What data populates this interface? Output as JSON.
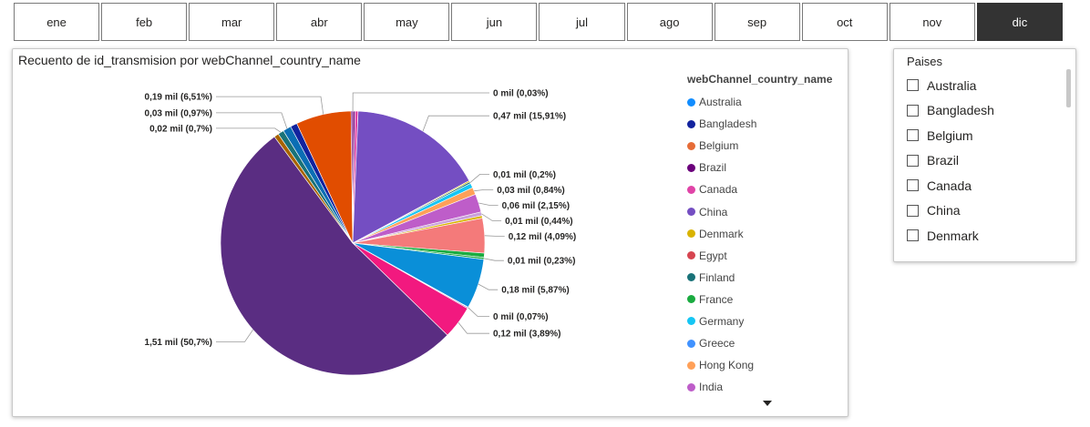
{
  "months": [
    "ene",
    "feb",
    "mar",
    "abr",
    "may",
    "jun",
    "jul",
    "ago",
    "sep",
    "oct",
    "nov",
    "dic"
  ],
  "selected_month": "dic",
  "chart_title": "Recuento de id_transmision por webChannel_country_name",
  "legend": {
    "title": "webChannel_country_name",
    "items": [
      {
        "name": "Australia",
        "color": "#118DFF"
      },
      {
        "name": "Bangladesh",
        "color": "#12239E"
      },
      {
        "name": "Belgium",
        "color": "#E66C37"
      },
      {
        "name": "Brazil",
        "color": "#6B007B"
      },
      {
        "name": "Canada",
        "color": "#E044A7"
      },
      {
        "name": "China",
        "color": "#744EC2"
      },
      {
        "name": "Denmark",
        "color": "#D9B300"
      },
      {
        "name": "Egypt",
        "color": "#D64550"
      },
      {
        "name": "Finland",
        "color": "#197278"
      },
      {
        "name": "France",
        "color": "#1AAB40"
      },
      {
        "name": "Germany",
        "color": "#15C6F4"
      },
      {
        "name": "Greece",
        "color": "#4092FF"
      },
      {
        "name": "Hong Kong",
        "color": "#FFA058"
      },
      {
        "name": "India",
        "color": "#BE5DC9"
      }
    ]
  },
  "chart_data": {
    "type": "pie",
    "title": "Recuento de id_transmision por webChannel_country_name",
    "legend_title": "webChannel_country_name",
    "legend_position": "right",
    "slices": [
      {
        "label": "0 mil (0,03%)",
        "pct": 0.03,
        "color": "#6B007B"
      },
      {
        "label": "",
        "pct": 0.25,
        "color": "#6B007B"
      },
      {
        "label": "",
        "pct": 0.35,
        "color": "#E044A7"
      },
      {
        "label": "0,47 mil (15,91%)",
        "pct": 15.91,
        "color": "#744EC2"
      },
      {
        "label": "",
        "pct": 0.15,
        "color": "#D9B300"
      },
      {
        "label": "0,01 mil (0,2%)",
        "pct": 0.2,
        "color": "#197278"
      },
      {
        "label": "",
        "pct": 0.55,
        "color": "#15C6F4"
      },
      {
        "label": "0,03 mil (0,84%)",
        "pct": 0.84,
        "color": "#FFA058"
      },
      {
        "label": "0,06 mil (2,15%)",
        "pct": 2.15,
        "color": "#BE5DC9"
      },
      {
        "label": "0,01 mil (0,44%)",
        "pct": 0.44,
        "color": "#C9A0DC"
      },
      {
        "label": "",
        "pct": 0.3,
        "color": "#D9B300"
      },
      {
        "label": "0,12 mil (4,09%)",
        "pct": 4.09,
        "color": "#F47A7A"
      },
      {
        "label": "",
        "pct": 0.5,
        "color": "#1AAB40"
      },
      {
        "label": "0,01 mil (0,23%)",
        "pct": 0.23,
        "color": "#1AAB40"
      },
      {
        "label": "0,18 mil (5,87%)",
        "pct": 5.87,
        "color": "#0A8FD8"
      },
      {
        "label": "0 mil (0,07%)",
        "pct": 0.07,
        "color": "#12239E"
      },
      {
        "label": "",
        "pct": 0.1,
        "color": "#6B007B"
      },
      {
        "label": "0,12 mil (3,89%)",
        "pct": 3.89,
        "color": "#F2197F"
      },
      {
        "label": "1,51 mil (50,7%)",
        "pct": 50.7,
        "color": "#5A2D82"
      },
      {
        "label": "",
        "pct": 0.55,
        "color": "#A86300"
      },
      {
        "label": "0,02 mil (0,7%)",
        "pct": 0.7,
        "color": "#197278"
      },
      {
        "label": "0,03 mil (0,97%)",
        "pct": 0.97,
        "color": "#0A6EB4"
      },
      {
        "label": "",
        "pct": 0.8,
        "color": "#12239E"
      },
      {
        "label": "0,19 mil (6,51%)",
        "pct": 6.51,
        "color": "#E14D00"
      },
      {
        "label": "",
        "pct": 0.19,
        "color": "#6B007B"
      }
    ]
  },
  "country_slicer": {
    "title": "Paises",
    "items": [
      "Australia",
      "Bangladesh",
      "Belgium",
      "Brazil",
      "Canada",
      "China",
      "Denmark"
    ]
  }
}
